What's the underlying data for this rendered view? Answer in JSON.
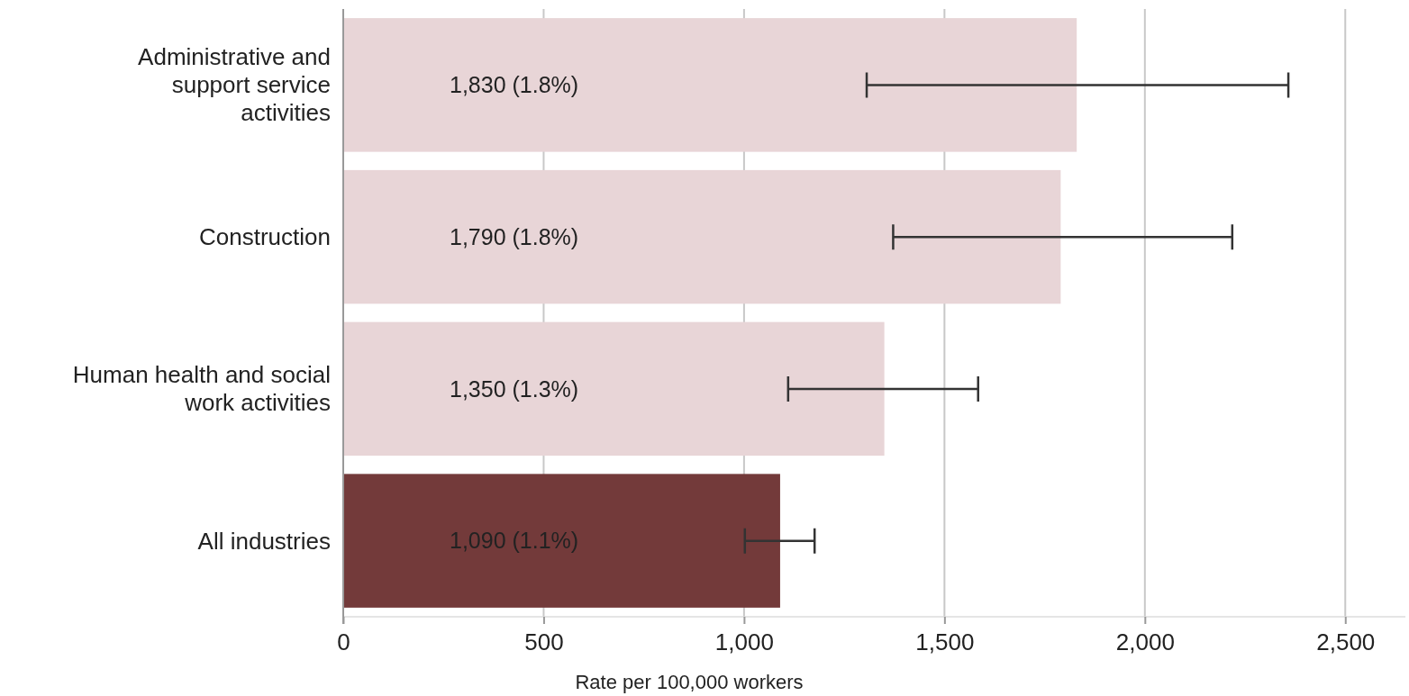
{
  "chart_data": {
    "type": "bar",
    "orientation": "horizontal",
    "categories": [
      "Administrative and support service activities",
      "Construction",
      "Human health and social work activities",
      "All industries"
    ],
    "values": [
      1830,
      1790,
      1350,
      1090
    ],
    "colors": [
      "#e8d5d7",
      "#e8d5d7",
      "#e8d5d7",
      "#733a3a"
    ],
    "value_labels": [
      "1,830 (1.8%)",
      "1,790 (1.8%)",
      "1,350 (1.3%)",
      "1,090 (1.1%)"
    ],
    "errors": [
      [
        1306,
        2358
      ],
      [
        1372,
        2218
      ],
      [
        1110,
        1584
      ],
      [
        1002,
        1176
      ]
    ],
    "xlim": [
      0,
      2650
    ],
    "xticks": [
      0,
      500,
      {
        "value": 1000,
        "label": "1,000"
      },
      {
        "value": 1500,
        "label": "1,500"
      },
      {
        "value": 2000,
        "label": "2,000"
      },
      {
        "value": 2500,
        "label": "2,500"
      }
    ],
    "xlabel": "Rate per 100,000 workers",
    "grid": "x"
  }
}
